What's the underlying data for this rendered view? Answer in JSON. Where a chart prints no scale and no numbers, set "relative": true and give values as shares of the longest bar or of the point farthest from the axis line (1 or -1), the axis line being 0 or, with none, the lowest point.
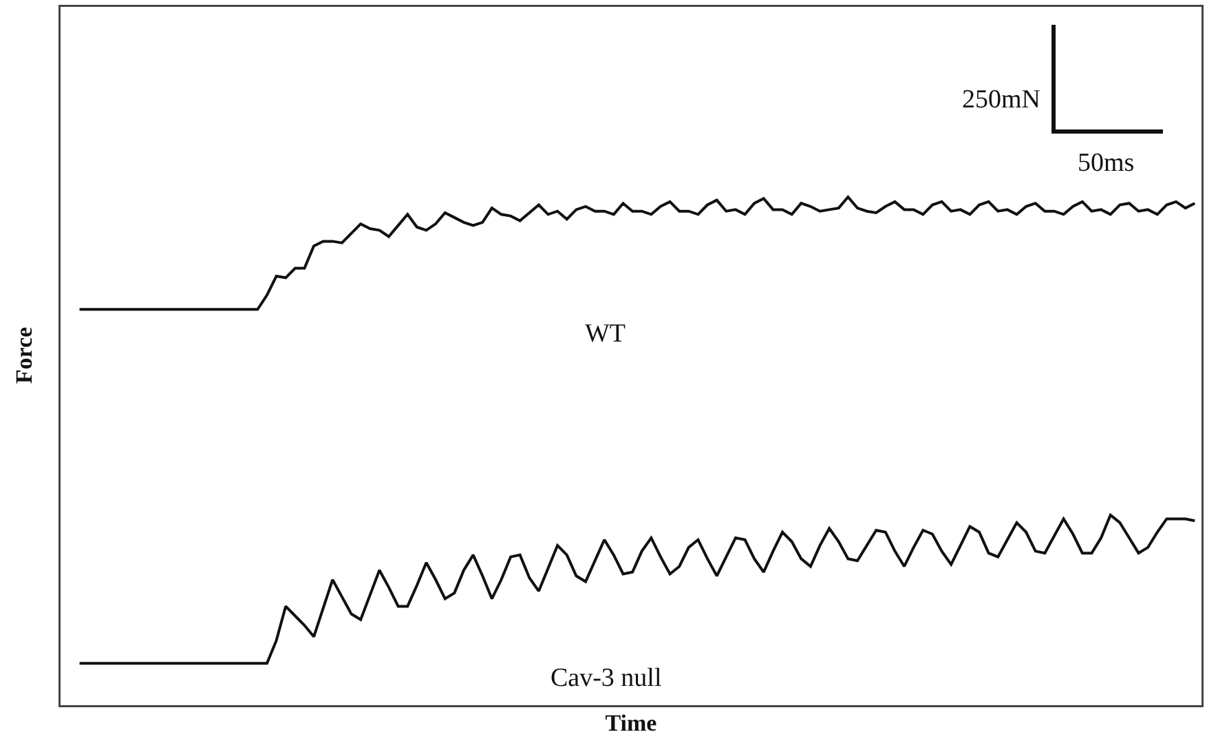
{
  "chart_data": [
    {
      "type": "line",
      "ylabel": "Force",
      "relative": true,
      "annotations": [
        "WT",
        "250mN",
        "50ms"
      ],
      "categories": [
        null,
        null,
        null,
        null,
        null,
        null,
        null,
        null,
        null,
        null,
        null,
        null,
        null,
        null,
        null,
        null,
        null,
        null,
        null,
        null,
        null,
        null,
        null,
        null,
        null,
        null,
        null,
        null,
        null,
        null,
        null,
        null,
        null,
        null,
        null,
        null,
        null,
        null,
        null,
        null,
        null,
        null,
        null,
        null,
        null,
        null,
        null,
        null,
        null,
        null,
        null,
        null,
        null,
        null,
        null,
        null,
        null,
        null,
        null,
        null,
        null,
        null,
        null,
        null,
        null,
        null,
        null,
        null,
        null,
        null,
        null,
        null,
        null,
        null,
        null,
        null,
        null,
        null,
        null,
        null,
        null,
        null,
        null,
        null,
        null,
        null,
        null,
        null,
        null,
        null,
        null,
        null,
        null,
        null,
        null,
        null,
        null,
        null,
        null,
        null,
        null,
        null,
        null,
        null,
        null,
        null,
        null,
        null,
        null,
        null,
        null,
        null,
        null,
        null,
        null,
        null,
        null,
        null,
        null,
        null
      ],
      "series": [
        {
          "color": "#111111",
          "values": [
            0.29,
            0.29,
            0.29,
            0.29,
            0.29,
            0.29,
            0.29,
            0.29,
            0.29,
            0.29,
            0.29,
            0.29,
            0.29,
            0.29,
            0.29,
            0.29,
            0.29,
            0.29,
            0.29,
            0.29,
            0.38,
            0.5,
            0.49,
            0.55,
            0.55,
            0.69,
            0.72,
            0.72,
            0.71,
            0.77,
            0.83,
            0.8,
            0.79,
            0.75,
            0.82,
            0.89,
            0.81,
            0.79,
            0.83,
            0.9,
            0.87,
            0.84,
            0.82,
            0.84,
            0.93,
            0.89,
            0.88,
            0.85,
            0.9,
            0.95,
            0.89,
            0.91,
            0.86,
            0.92,
            0.94,
            0.91,
            0.91,
            0.89,
            0.96,
            0.91,
            0.91,
            0.89,
            0.94,
            0.97,
            0.91,
            0.91,
            0.89,
            0.95,
            0.98,
            0.91,
            0.92,
            0.89,
            0.96,
            0.99,
            0.92,
            0.92,
            0.89,
            0.96,
            0.94,
            0.91,
            0.92,
            0.93,
            1.0,
            0.93,
            0.91,
            0.9,
            0.94,
            0.97,
            0.92,
            0.92,
            0.89,
            0.95,
            0.97,
            0.91,
            0.92,
            0.89,
            0.95,
            0.97,
            0.91,
            0.92,
            0.89,
            0.94,
            0.96,
            0.91,
            0.91,
            0.89,
            0.94,
            0.97,
            0.91,
            0.92,
            0.89,
            0.95,
            0.96,
            0.91,
            0.92,
            0.89,
            0.95,
            0.97,
            0.93,
            0.96
          ]
        }
      ]
    },
    {
      "type": "line",
      "xlabel": "Time",
      "relative": true,
      "annotations": [
        "Cav-3 null"
      ],
      "categories": [
        null,
        null,
        null,
        null,
        null,
        null,
        null,
        null,
        null,
        null,
        null,
        null,
        null,
        null,
        null,
        null,
        null,
        null,
        null,
        null,
        null,
        null,
        null,
        null,
        null,
        null,
        null,
        null,
        null,
        null,
        null,
        null,
        null,
        null,
        null,
        null,
        null,
        null,
        null,
        null,
        null,
        null,
        null,
        null,
        null,
        null,
        null,
        null,
        null,
        null,
        null,
        null,
        null,
        null,
        null,
        null,
        null,
        null,
        null,
        null,
        null,
        null,
        null,
        null,
        null,
        null,
        null,
        null,
        null,
        null,
        null,
        null,
        null,
        null,
        null,
        null,
        null,
        null,
        null,
        null,
        null,
        null,
        null,
        null,
        null,
        null,
        null,
        null,
        null,
        null,
        null,
        null,
        null,
        null,
        null,
        null,
        null,
        null,
        null,
        null,
        null,
        null,
        null,
        null,
        null,
        null,
        null,
        null,
        null,
        null,
        null,
        null,
        null,
        null,
        null,
        null,
        null,
        null,
        null,
        null
      ],
      "series": [
        {
          "color": "#111111",
          "values": [
            0.22,
            0.22,
            0.22,
            0.22,
            0.22,
            0.22,
            0.22,
            0.22,
            0.22,
            0.22,
            0.22,
            0.22,
            0.22,
            0.22,
            0.22,
            0.22,
            0.22,
            0.22,
            0.22,
            0.22,
            0.22,
            0.34,
            0.52,
            0.47,
            0.42,
            0.36,
            0.51,
            0.66,
            0.57,
            0.48,
            0.45,
            0.58,
            0.71,
            0.62,
            0.52,
            0.52,
            0.63,
            0.75,
            0.66,
            0.56,
            0.59,
            0.71,
            0.79,
            0.68,
            0.56,
            0.66,
            0.78,
            0.79,
            0.67,
            0.6,
            0.72,
            0.84,
            0.79,
            0.68,
            0.65,
            0.76,
            0.87,
            0.79,
            0.69,
            0.7,
            0.81,
            0.88,
            0.78,
            0.69,
            0.73,
            0.83,
            0.87,
            0.77,
            0.68,
            0.78,
            0.88,
            0.87,
            0.77,
            0.7,
            0.81,
            0.91,
            0.86,
            0.77,
            0.73,
            0.84,
            0.93,
            0.86,
            0.77,
            0.76,
            0.84,
            0.92,
            0.91,
            0.81,
            0.73,
            0.83,
            0.92,
            0.9,
            0.81,
            0.74,
            0.84,
            0.94,
            0.91,
            0.8,
            0.78,
            0.87,
            0.96,
            0.91,
            0.81,
            0.8,
            0.89,
            0.98,
            0.9,
            0.8,
            0.8,
            0.88,
            1.0,
            0.96,
            0.88,
            0.8,
            0.83,
            0.91,
            0.98,
            0.98,
            0.98,
            0.97
          ]
        }
      ]
    }
  ]
}
